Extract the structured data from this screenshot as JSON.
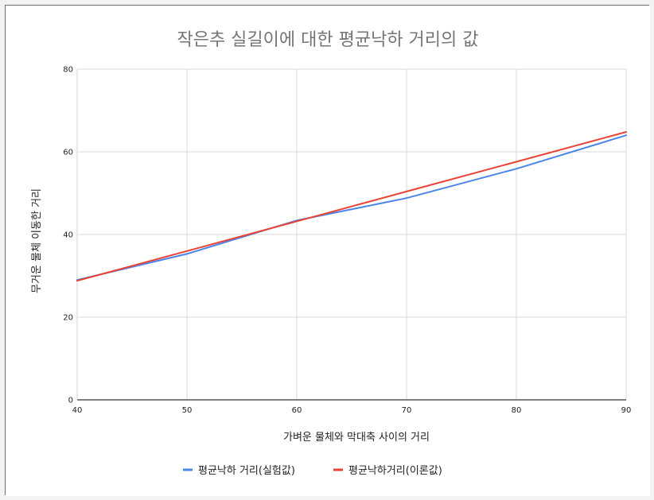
{
  "chart_data": {
    "type": "line",
    "title": "작은추 실길이에 대한 평균낙하 거리의 값",
    "xlabel": "가벼운 물체와 막대축 사이의 거리",
    "ylabel": "무거운 물체  이동한  거리",
    "x": [
      40,
      50,
      60,
      70,
      80,
      90
    ],
    "xlim": [
      40,
      90
    ],
    "ylim": [
      0,
      80
    ],
    "xticks": [
      "40",
      "50",
      "60",
      "70",
      "80",
      "90"
    ],
    "yticks": [
      "0",
      "20",
      "40",
      "60",
      "80"
    ],
    "grid": true,
    "legend_position": "bottom",
    "series": [
      {
        "name": "평균낙하 거리(실험값)",
        "color": "#4a86e8",
        "values": [
          29,
          35.3,
          43.4,
          48.8,
          55.9,
          64.0
        ]
      },
      {
        "name": "평균낙하거리(이론값)",
        "color": "#ea4335",
        "values": [
          28.8,
          36.0,
          43.2,
          50.4,
          57.6,
          64.8
        ]
      }
    ]
  }
}
